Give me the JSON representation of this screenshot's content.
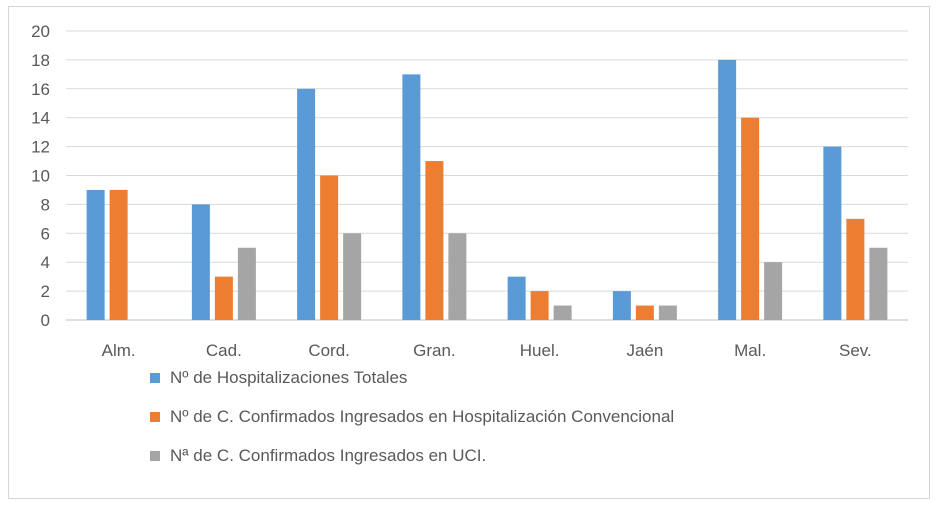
{
  "chart_data": {
    "type": "bar",
    "categories": [
      "Alm.",
      "Cad.",
      "Cord.",
      "Gran.",
      "Huel.",
      "Jaén",
      "Mal.",
      "Sev."
    ],
    "series": [
      {
        "name": "Nº de Hospitalizaciones Totales",
        "values": [
          9,
          8,
          16,
          17,
          3,
          2,
          18,
          12
        ],
        "color": "#5b9bd5"
      },
      {
        "name": "Nº de C. Confirmados Ingresados en Hospitalización Convencional",
        "values": [
          9,
          3,
          10,
          11,
          2,
          1,
          14,
          7
        ],
        "color": "#ed7d31"
      },
      {
        "name": "Nª de C. Confirmados Ingresados en UCI.",
        "values": [
          0,
          5,
          6,
          6,
          1,
          1,
          4,
          5
        ],
        "color": "#a5a5a5"
      }
    ],
    "yticks": [
      "0",
      "2",
      "4",
      "6",
      "8",
      "10",
      "12",
      "14",
      "16",
      "18",
      "20"
    ],
    "ylim": [
      0,
      20
    ],
    "grid": true,
    "legend_position": "bottom",
    "title": "",
    "xlabel": "",
    "ylabel": ""
  }
}
